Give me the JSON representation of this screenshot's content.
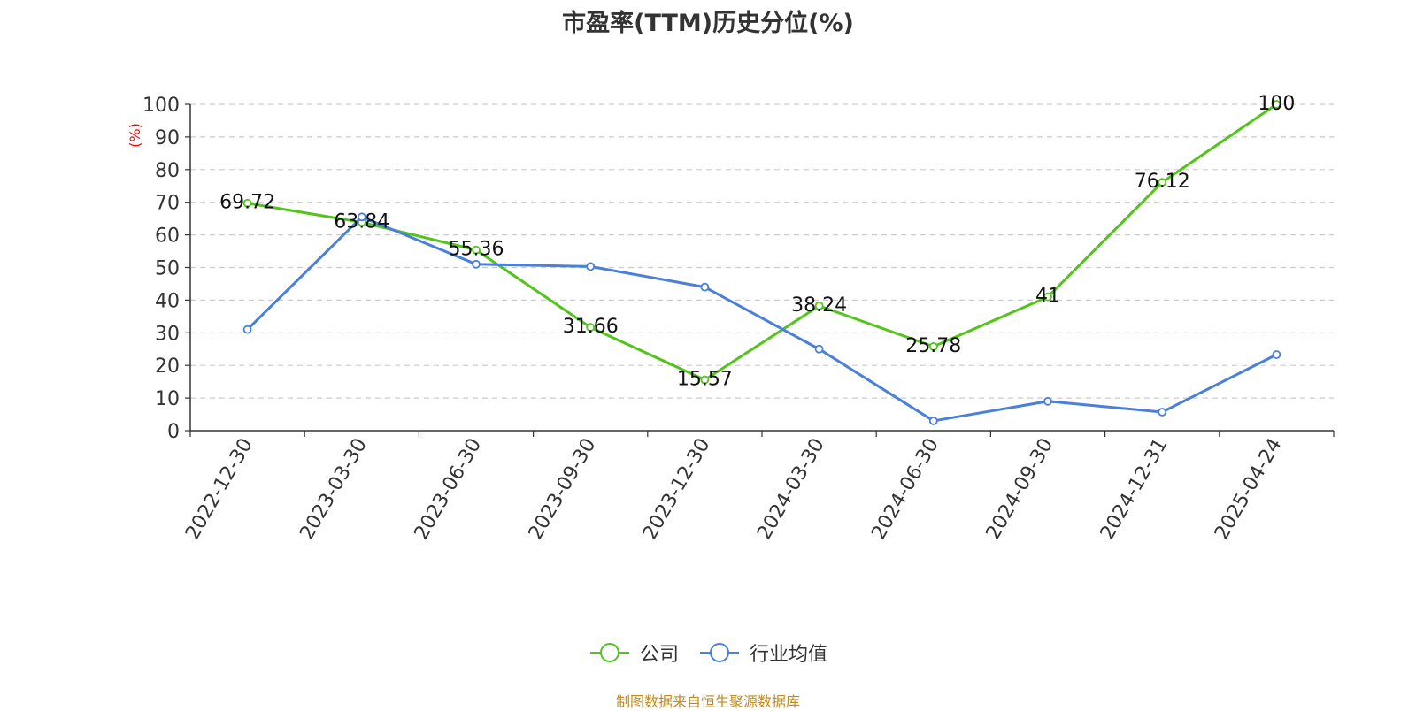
{
  "chart_data": {
    "type": "line",
    "title": "市盈率(TTM)历史分位(%)",
    "ylabel": "(%)",
    "xlabel": "",
    "ylim": [
      0,
      100
    ],
    "yticks": [
      0,
      10,
      20,
      30,
      40,
      50,
      60,
      70,
      80,
      90,
      100
    ],
    "grid": true,
    "legend_position": "bottom",
    "categories": [
      "2022-12-30",
      "2023-03-30",
      "2023-06-30",
      "2023-09-30",
      "2023-12-30",
      "2024-03-30",
      "2024-06-30",
      "2024-09-30",
      "2024-12-31",
      "2025-04-24"
    ],
    "series": [
      {
        "name": "公司",
        "color": "#52c41a",
        "show_labels": true,
        "values": [
          69.72,
          63.84,
          55.36,
          31.66,
          15.57,
          38.24,
          25.78,
          41,
          76.12,
          100
        ]
      },
      {
        "name": "行业均值",
        "color": "#4a7fdc",
        "show_labels": false,
        "values": [
          31,
          65.5,
          51,
          50.3,
          44,
          25,
          3,
          9,
          5.7,
          23.3
        ]
      }
    ]
  },
  "source": "制图数据来自恒生聚源数据库"
}
